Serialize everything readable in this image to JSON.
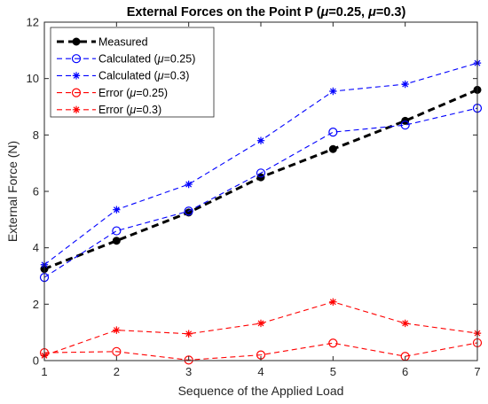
{
  "chart_data": {
    "type": "line",
    "title": {
      "prefix": "External Forces on the Point P (",
      "mu1": "μ",
      "mid": "=0.25, ",
      "mu2": "μ",
      "suffix": "=0.3)"
    },
    "xlabel": "Sequence of the Applied Load",
    "ylabel": "External Force (N)",
    "xlim": [
      1,
      7
    ],
    "ylim": [
      0,
      12
    ],
    "xticks": [
      "1",
      "2",
      "3",
      "4",
      "5",
      "6",
      "7"
    ],
    "yticks": [
      "0",
      "2",
      "4",
      "6",
      "8",
      "10",
      "12"
    ],
    "grid": false,
    "legend_position": "top-left",
    "x": [
      1,
      2,
      3,
      4,
      5,
      6,
      7
    ],
    "series": [
      {
        "name": "Measured",
        "legend": {
          "main": "Measured",
          "mu": "",
          "rest": ""
        },
        "color": "#000000",
        "marker": "dot",
        "style": "dashed-bold",
        "values": [
          3.25,
          4.25,
          5.25,
          6.5,
          7.5,
          8.5,
          9.6
        ]
      },
      {
        "name": "Calculated (μ=0.25)",
        "legend": {
          "main": "Calculated (",
          "mu": "μ",
          "rest": "=0.25)"
        },
        "color": "#0000ff",
        "marker": "circle",
        "style": "dashed",
        "values": [
          2.95,
          4.6,
          5.3,
          6.65,
          8.1,
          8.35,
          8.95
        ]
      },
      {
        "name": "Calculated (μ=0.3)",
        "legend": {
          "main": "Calculated (",
          "mu": "μ",
          "rest": "=0.3)"
        },
        "color": "#0000ff",
        "marker": "asterisk",
        "style": "dashed",
        "values": [
          3.4,
          5.35,
          6.25,
          7.8,
          9.55,
          9.8,
          10.55
        ]
      },
      {
        "name": "Error (μ=0.25)",
        "legend": {
          "main": "Error (",
          "mu": "μ",
          "rest": "=0.25)"
        },
        "color": "#ff0000",
        "marker": "circle",
        "style": "dashed",
        "values": [
          0.28,
          0.32,
          0.02,
          0.2,
          0.62,
          0.15,
          0.63
        ]
      },
      {
        "name": "Error (μ=0.3)",
        "legend": {
          "main": "Error (",
          "mu": "μ",
          "rest": "=0.3)"
        },
        "color": "#ff0000",
        "marker": "asterisk",
        "style": "dashed",
        "values": [
          0.18,
          1.08,
          0.95,
          1.32,
          2.08,
          1.32,
          0.97
        ]
      }
    ]
  }
}
